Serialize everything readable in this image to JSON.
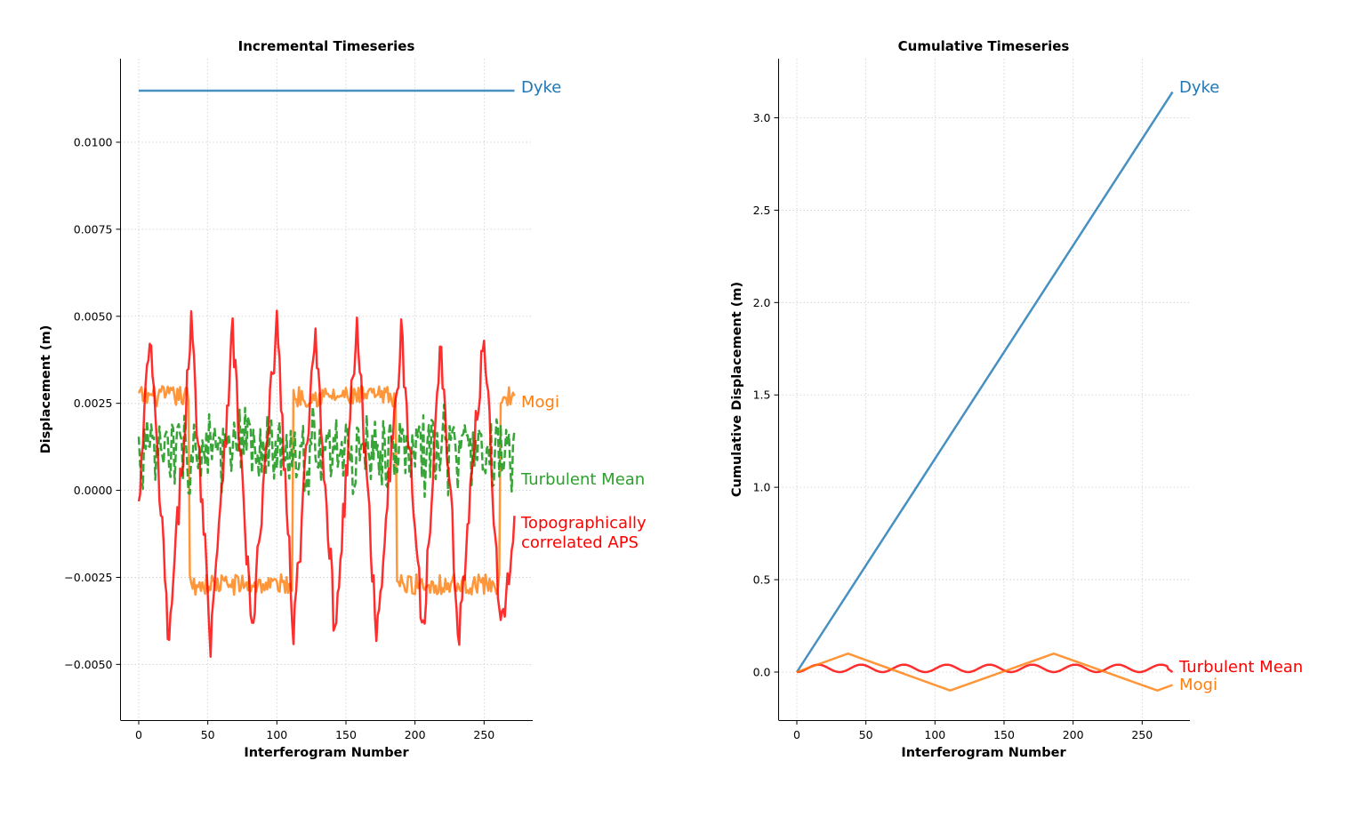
{
  "chart_data": [
    {
      "type": "line",
      "title": "Incremental Timeseries",
      "xlabel": "Interferogram Number",
      "ylabel": "Displacement (m)",
      "xlim": [
        -13,
        285
      ],
      "ylim": [
        -0.0066,
        0.0124
      ],
      "xticks": [
        0,
        50,
        100,
        150,
        200,
        250
      ],
      "xtick_labels": [
        "0",
        "50",
        "100",
        "150",
        "200",
        "250"
      ],
      "yticks": [
        -0.005,
        -0.0025,
        0.0,
        0.0025,
        0.005,
        0.0075,
        0.01
      ],
      "ytick_labels": [
        "−0.0050",
        "−0.0025",
        "0.0000",
        "0.0025",
        "0.0050",
        "0.0075",
        "0.0100"
      ],
      "grid": true,
      "series": [
        {
          "name": "Dyke",
          "color": "#1f77b4",
          "style": "solid",
          "label_lines": [
            "Dyke"
          ],
          "x": [
            0,
            272
          ],
          "y": [
            0.01148,
            0.01148
          ]
        },
        {
          "name": "Mogi",
          "color": "#ff7f0e",
          "style": "noisy-square",
          "label_lines": [
            "Mogi"
          ],
          "x": [
            0,
            36,
            37,
            111,
            112,
            186,
            187,
            261,
            262,
            272
          ],
          "y": [
            0.0027,
            0.0027,
            -0.0027,
            -0.0027,
            0.0027,
            0.0027,
            -0.0027,
            -0.0027,
            0.0027,
            0.0027
          ],
          "noise_amplitude": 0.0003
        },
        {
          "name": "Turbulent Mean",
          "color": "#2ca02c",
          "style": "dashed-noisy",
          "label_lines": [
            "Turbulent Mean"
          ],
          "x": [
            0,
            272
          ],
          "y": [
            0.0011,
            0.0011
          ],
          "noise_amplitude": 0.0013
        },
        {
          "name": "Topographically correlated APS",
          "color": "#ff0000",
          "style": "noisy-wave",
          "label_lines": [
            "Topographically",
            "correlated APS"
          ],
          "x": [
            0,
            8,
            22,
            38,
            52,
            68,
            82,
            100,
            112,
            128,
            142,
            158,
            172,
            190,
            206,
            218,
            232,
            250,
            262,
            272
          ],
          "y": [
            -0.0006,
            0.0045,
            -0.0045,
            0.0047,
            -0.0042,
            0.0046,
            -0.0042,
            0.0049,
            -0.0042,
            0.0046,
            -0.0041,
            0.0048,
            -0.0041,
            0.0044,
            -0.0042,
            0.0044,
            -0.0042,
            0.0047,
            -0.0041,
            -0.0013
          ],
          "noise_amplitude": 0.0006
        }
      ]
    },
    {
      "type": "line",
      "title": "Cumulative Timeseries",
      "xlabel": "Interferogram Number",
      "ylabel": "Cumulative Displacement (m)",
      "xlim": [
        -13,
        285
      ],
      "ylim": [
        -0.26,
        3.32
      ],
      "xticks": [
        0,
        50,
        100,
        150,
        200,
        250
      ],
      "xtick_labels": [
        "0",
        "50",
        "100",
        "150",
        "200",
        "250"
      ],
      "yticks": [
        0.0,
        0.5,
        1.0,
        1.5,
        2.0,
        2.5,
        3.0
      ],
      "ytick_labels": [
        "0.0",
        "0.5",
        "1.0",
        "1.5",
        "2.0",
        "2.5",
        "3.0"
      ],
      "grid": true,
      "series": [
        {
          "name": "Dyke",
          "color": "#1f77b4",
          "style": "solid",
          "label_lines": [
            "Dyke"
          ],
          "x": [
            0,
            272
          ],
          "y": [
            0.0,
            3.14
          ]
        },
        {
          "name": "Turbulent Mean",
          "color": "#ff0000",
          "style": "sine",
          "label_lines": [
            "Turbulent Mean"
          ],
          "x": [
            0,
            8,
            16,
            23,
            31,
            39,
            47,
            54,
            62,
            70,
            78,
            85,
            93,
            101,
            109,
            116,
            124,
            132,
            140,
            147,
            155,
            163,
            171,
            178,
            186,
            194,
            202,
            209,
            217,
            225,
            233,
            240,
            248,
            256,
            264,
            272
          ],
          "y": [
            0.0,
            0.03,
            0.04,
            0.01,
            0.0,
            0.03,
            0.04,
            0.01,
            0.0,
            0.03,
            0.04,
            0.01,
            0.0,
            0.03,
            0.04,
            0.01,
            0.0,
            0.03,
            0.04,
            0.01,
            0.0,
            0.03,
            0.04,
            0.01,
            0.0,
            0.03,
            0.04,
            0.01,
            0.0,
            0.03,
            0.04,
            0.01,
            0.0,
            0.03,
            0.04,
            0.0
          ]
        },
        {
          "name": "Mogi",
          "color": "#ff7f0e",
          "style": "solid",
          "label_lines": [
            "Mogi"
          ],
          "x": [
            0,
            37,
            111,
            186,
            261,
            272
          ],
          "y": [
            0.0,
            0.1,
            -0.1,
            0.1,
            -0.1,
            -0.07
          ]
        }
      ]
    }
  ]
}
